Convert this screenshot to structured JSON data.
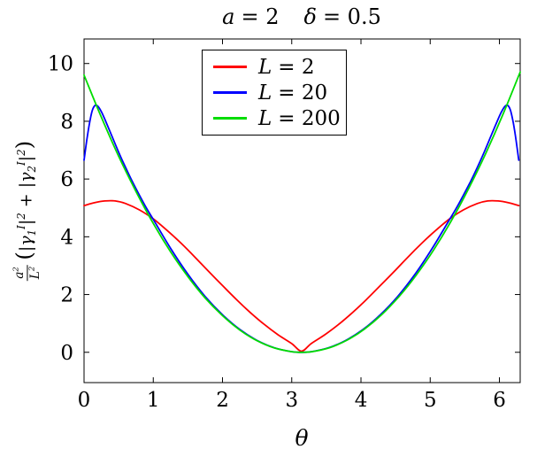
{
  "title": {
    "parts": [
      {
        "var": "a",
        "eq": "= 2"
      },
      {
        "var": "δ",
        "eq": "= 0.5"
      }
    ]
  },
  "axes": {
    "xlabel": "θ",
    "ylabel": {
      "num_base": "a",
      "num_exp": "2",
      "den_base": "L",
      "den_exp": "2",
      "open": "(",
      "g1": "|γ",
      "g1_sub": "1",
      "g1_sup": "I",
      "g1_bar": "|",
      "g1_exp": "2",
      "plus": " + ",
      "g2": "|γ",
      "g2_sub": "2",
      "g2_sup": "I",
      "g2_bar": "|",
      "g2_exp": "2",
      "close": ")"
    }
  },
  "legend": {
    "items": [
      {
        "var": "L",
        "eq": "= 2"
      },
      {
        "var": "L",
        "eq": "= 20"
      },
      {
        "var": "L",
        "eq": "= 200"
      }
    ]
  },
  "chart_data": {
    "type": "line",
    "title": "a = 2, δ = 0.5",
    "xlabel": "θ",
    "ylabel": "(a²/L²)(|γ₁^I|² + |γ₂^I|²)",
    "xlim": [
      0,
      6.3
    ],
    "ylim": [
      -1.05,
      10.85
    ],
    "xticks": [
      0,
      1,
      2,
      3,
      4,
      5,
      6
    ],
    "yticks": [
      0,
      2,
      4,
      6,
      8,
      10
    ],
    "grid": false,
    "legend_position": "top center",
    "series": [
      {
        "name": "L = 2",
        "color": "#ff0000",
        "x": [
          0,
          0.15,
          0.3,
          0.45,
          0.6,
          0.8,
          1.0,
          1.2,
          1.4,
          1.6,
          1.8,
          2.0,
          2.2,
          2.4,
          2.6,
          2.8,
          3.0,
          3.1416,
          3.28,
          3.48,
          3.68,
          3.88,
          4.08,
          4.28,
          4.48,
          4.68,
          4.88,
          5.08,
          5.28,
          5.48,
          5.68,
          5.83,
          5.98,
          6.13,
          6.28
        ],
        "y": [
          5.08,
          5.18,
          5.24,
          5.24,
          5.15,
          4.93,
          4.62,
          4.22,
          3.78,
          3.3,
          2.8,
          2.31,
          1.83,
          1.38,
          0.97,
          0.61,
          0.3,
          0.04,
          0.3,
          0.61,
          0.97,
          1.38,
          1.83,
          2.31,
          2.8,
          3.3,
          3.78,
          4.22,
          4.62,
          4.93,
          5.15,
          5.24,
          5.24,
          5.18,
          5.08
        ]
      },
      {
        "name": "L = 20",
        "color": "#0000ff",
        "x": [
          0,
          0.04,
          0.08,
          0.12,
          0.16,
          0.2,
          0.25,
          0.3,
          0.4,
          0.5,
          0.6,
          0.7,
          0.8,
          0.9,
          1.0,
          1.25,
          1.5,
          1.75,
          2.0,
          2.25,
          2.5,
          2.75,
          3.0,
          3.1416,
          3.28,
          3.53,
          3.78,
          4.03,
          4.28,
          4.53,
          4.78,
          5.03,
          5.28,
          5.38,
          5.48,
          5.58,
          5.68,
          5.78,
          5.88,
          5.98,
          6.03,
          6.08,
          6.12,
          6.16,
          6.2,
          6.24,
          6.28
        ],
        "y": [
          6.65,
          7.35,
          7.95,
          8.38,
          8.55,
          8.52,
          8.33,
          8.07,
          7.5,
          6.93,
          6.4,
          5.9,
          5.44,
          5.0,
          4.6,
          3.6,
          2.7,
          1.93,
          1.3,
          0.79,
          0.41,
          0.155,
          0.02,
          0.0,
          0.02,
          0.155,
          0.41,
          0.79,
          1.3,
          1.93,
          2.7,
          3.6,
          4.6,
          5.0,
          5.44,
          5.9,
          6.4,
          6.93,
          7.5,
          8.07,
          8.33,
          8.52,
          8.55,
          8.38,
          7.95,
          7.35,
          6.65
        ]
      },
      {
        "name": "L = 200",
        "color": "#00dd00",
        "x": [
          0,
          0.25,
          0.5,
          0.75,
          1.0,
          1.25,
          1.5,
          1.75,
          2.0,
          2.25,
          2.5,
          2.75,
          3.0,
          3.1416,
          3.3,
          3.55,
          3.8,
          4.05,
          4.3,
          4.55,
          4.8,
          5.05,
          5.3,
          5.55,
          5.8,
          6.05,
          6.3
        ],
        "y": [
          9.6,
          8.14,
          6.79,
          5.57,
          4.46,
          3.48,
          2.62,
          1.88,
          1.27,
          0.77,
          0.4,
          0.15,
          0.02,
          0.0,
          0.024,
          0.162,
          0.422,
          0.803,
          1.306,
          1.931,
          2.676,
          3.544,
          4.533,
          5.644,
          6.876,
          8.23,
          9.705
        ]
      }
    ]
  }
}
